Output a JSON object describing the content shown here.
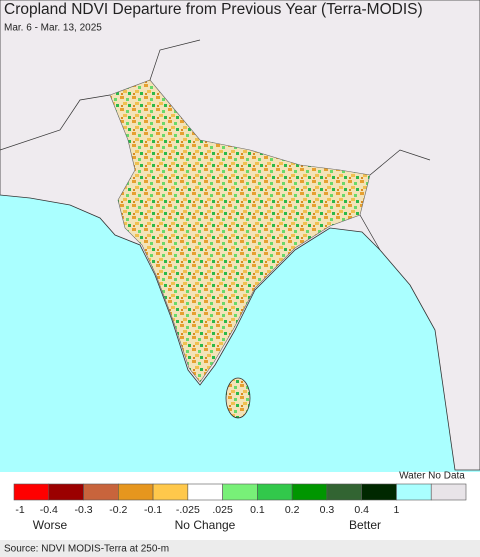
{
  "header": {
    "title": "Cropland NDVI Departure from Previous Year (Terra-MODIS)",
    "subtitle": "Mar. 6 - Mar. 13, 2025"
  },
  "legend": {
    "colors": [
      "#ff0000",
      "#9b0000",
      "#c8643c",
      "#e6961e",
      "#ffc84b",
      "#ffffff",
      "#78f078",
      "#32c84b",
      "#009600",
      "#326432",
      "#002800",
      "#aaffff",
      "#e8e4e8"
    ],
    "labels": [
      "-1",
      "-0.4",
      "-0.3",
      "-0.2",
      "-0.1",
      "-.025",
      ".025",
      "0.1",
      "0.2",
      "0.3",
      "0.4",
      "1"
    ],
    "extra_label": "Water No Data",
    "worse": "Worse",
    "no_change": "No Change",
    "better": "Better"
  },
  "footer": {
    "source": "Source: NDVI MODIS-Terra at 250-m"
  }
}
